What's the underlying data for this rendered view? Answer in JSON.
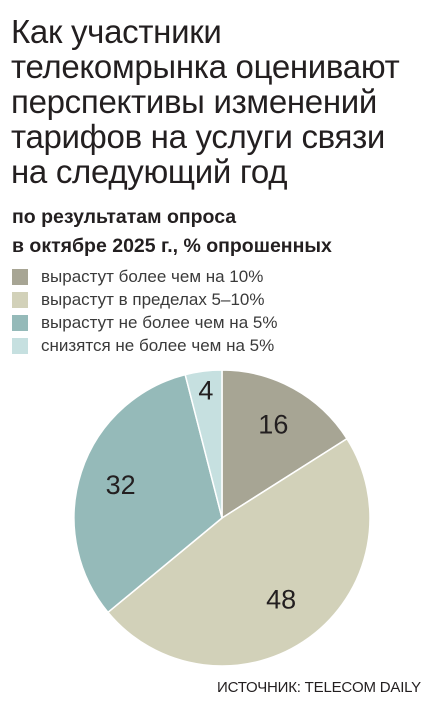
{
  "chart_data": {
    "type": "pie",
    "title": "Как участники телекомрынка оценивают перспективы изменений тарифов на услуги связи на следующий год",
    "subtitle": [
      "по результатам опроса",
      "в октябре 2025 г., % опрошенных"
    ],
    "categories": [
      "вырастут более чем на 10%",
      "вырастут в пределах 5–10%",
      "вырастут не более чем на 5%",
      "снизятся не более чем на 5%"
    ],
    "values": [
      16,
      48,
      32,
      4
    ],
    "colors": [
      "#a7a594",
      "#d2d1b9",
      "#95bab9",
      "#c6e0e0"
    ],
    "data_labels": [
      "16",
      "48",
      "32",
      "4"
    ],
    "legend_position": "top-left"
  },
  "source": "ИСТОЧНИК: TELECOM DAILY"
}
